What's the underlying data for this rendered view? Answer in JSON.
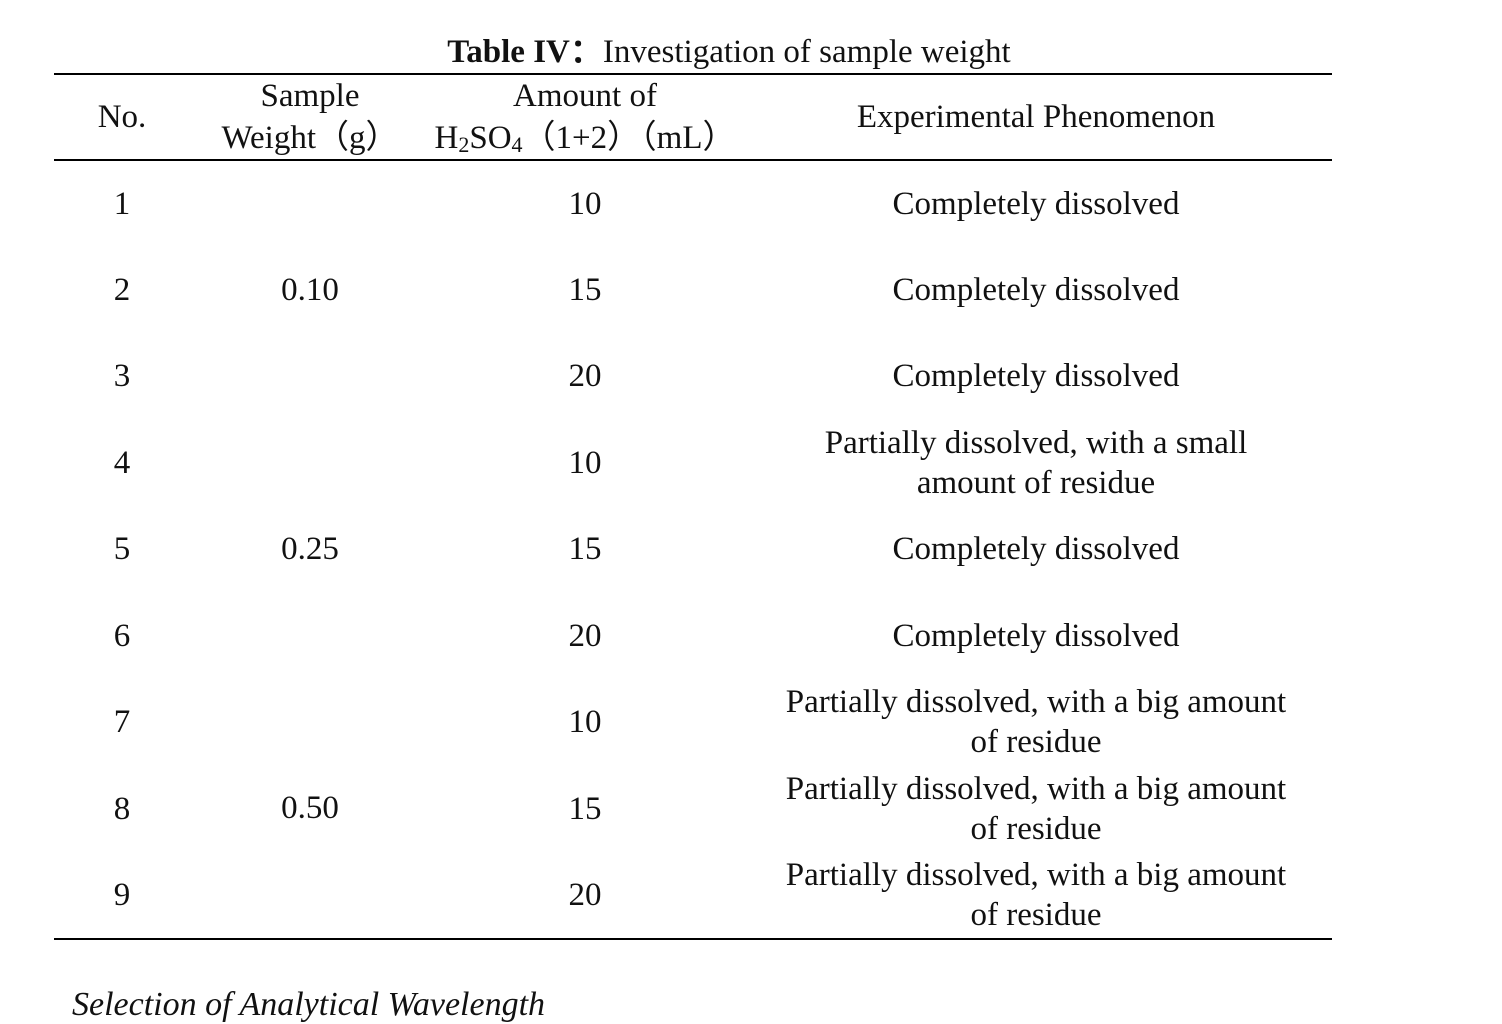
{
  "title": {
    "label": "Table IV：",
    "text": "Investigation of sample weight"
  },
  "table": {
    "columns": [
      {
        "lines": [
          "No."
        ]
      },
      {
        "lines": [
          "Sample",
          "Weight（g）"
        ]
      },
      {
        "parts": [
          "Amount of",
          "H",
          "2",
          "SO",
          "4",
          "（1+2）（mL）"
        ]
      },
      {
        "lines": [
          "Experimental Phenomenon"
        ]
      }
    ],
    "groups": [
      {
        "weight": "0.10",
        "rows": [
          {
            "no": "1",
            "amount": "10",
            "phenomenon": [
              "Completely dissolved"
            ]
          },
          {
            "no": "2",
            "amount": "15",
            "phenomenon": [
              "Completely dissolved"
            ]
          },
          {
            "no": "3",
            "amount": "20",
            "phenomenon": [
              "Completely dissolved"
            ]
          }
        ]
      },
      {
        "weight": "0.25",
        "rows": [
          {
            "no": "4",
            "amount": "10",
            "phenomenon": [
              "Partially dissolved, with a small",
              "amount of residue"
            ]
          },
          {
            "no": "5",
            "amount": "15",
            "phenomenon": [
              "Completely dissolved"
            ]
          },
          {
            "no": "6",
            "amount": "20",
            "phenomenon": [
              "Completely dissolved"
            ]
          }
        ]
      },
      {
        "weight": "0.50",
        "rows": [
          {
            "no": "7",
            "amount": "10",
            "phenomenon": [
              "Partially dissolved, with a big amount",
              "of residue"
            ]
          },
          {
            "no": "8",
            "amount": "15",
            "phenomenon": [
              "Partially dissolved, with a big amount",
              "of residue"
            ]
          },
          {
            "no": "9",
            "amount": "20",
            "phenomenon": [
              "Partially dissolved, with a big amount",
              "of residue"
            ]
          }
        ]
      }
    ]
  },
  "next_heading": "Selection of Analytical Wavelength"
}
